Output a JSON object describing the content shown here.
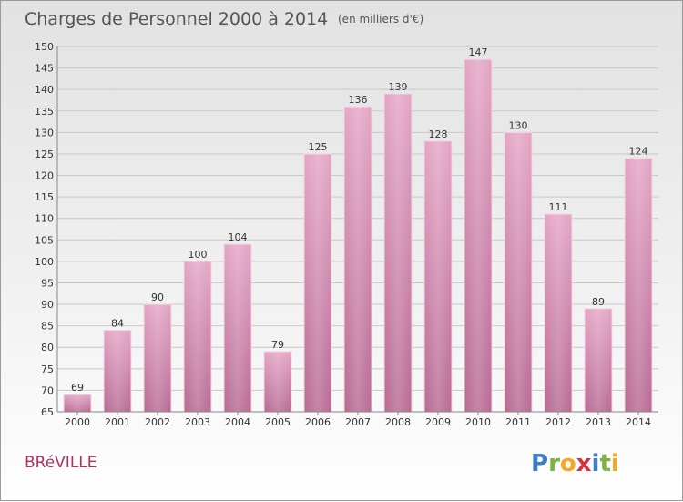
{
  "title": "Charges de Personnel 2000 à 2014",
  "subtitle": "(en milliers d'€)",
  "location": "BRéVILLE",
  "logo": "Proxiti",
  "colors": {
    "bar": "#d98cb2",
    "bar_highlight": "#e9b3cf",
    "bar_stroke": "#f4d6e6",
    "title": "#555555",
    "city": "#b03060"
  },
  "chart_data": {
    "type": "bar",
    "categories": [
      "2000",
      "2001",
      "2002",
      "2003",
      "2004",
      "2005",
      "2006",
      "2007",
      "2008",
      "2009",
      "2010",
      "2011",
      "2012",
      "2013",
      "2014"
    ],
    "values": [
      69,
      84,
      90,
      100,
      104,
      79,
      125,
      136,
      139,
      128,
      147,
      130,
      111,
      89,
      124
    ],
    "title": "Charges de Personnel 2000 à 2014",
    "subtitle": "(en milliers d'€)",
    "ylim": [
      65,
      150
    ],
    "yticks": [
      65,
      70,
      75,
      80,
      85,
      90,
      95,
      100,
      105,
      110,
      115,
      120,
      125,
      130,
      135,
      140,
      145,
      150
    ],
    "grid": true,
    "legend": "none"
  }
}
